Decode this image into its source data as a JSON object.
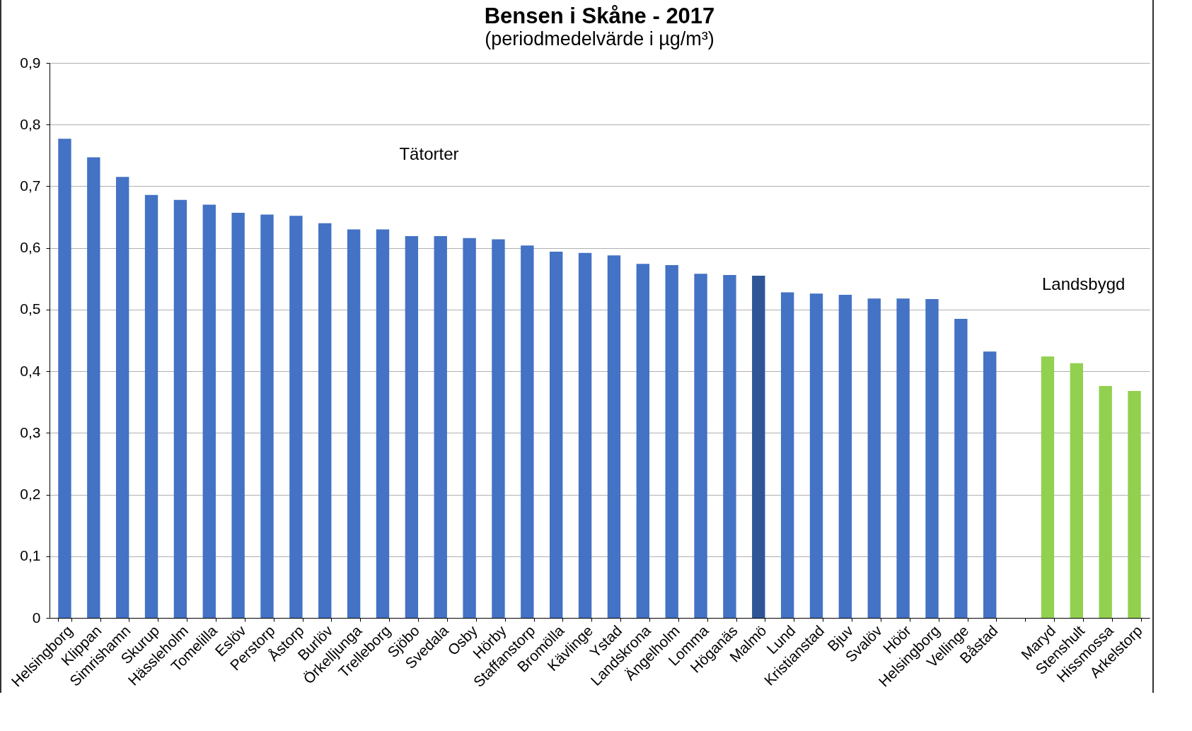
{
  "chart_data": {
    "type": "bar",
    "title": "Bensen i Skåne - 2017",
    "subtitle": "(periodmedelvärde i µg/m³)",
    "categories": [
      "Helsingborg",
      "Klippan",
      "Simrishamn",
      "Skurup",
      "Hässleholm",
      "Tomelilla",
      "Eslöv",
      "Perstorp",
      "Åstorp",
      "Burlöv",
      "Örkelljunga",
      "Trelleborg",
      "Sjöbo",
      "Svedala",
      "Osby",
      "Hörby",
      "Staffanstorp",
      "Bromölla",
      "Kävlinge",
      "Ystad",
      "Landskrona",
      "Ängelholm",
      "Lomma",
      "Höganäs",
      "Malmö",
      "Lund",
      "Kristianstad",
      "Bjuv",
      "Svalöv",
      "Höör",
      "Helsingborg",
      "Vellinge",
      "Båstad",
      null,
      "Maryd",
      "Stenshult",
      "Hissmossa",
      "Arkelstorp"
    ],
    "values": [
      0.777,
      0.747,
      0.715,
      0.686,
      0.678,
      0.67,
      0.657,
      0.654,
      0.652,
      0.64,
      0.63,
      0.63,
      0.619,
      0.619,
      0.616,
      0.614,
      0.604,
      0.594,
      0.592,
      0.588,
      0.574,
      0.572,
      0.558,
      0.556,
      0.555,
      0.528,
      0.526,
      0.524,
      0.518,
      0.518,
      0.517,
      0.485,
      0.432,
      null,
      0.424,
      0.413,
      0.376,
      0.368
    ],
    "colors": [
      "#4472c4",
      "#4472c4",
      "#4472c4",
      "#4472c4",
      "#4472c4",
      "#4472c4",
      "#4472c4",
      "#4472c4",
      "#4472c4",
      "#4472c4",
      "#4472c4",
      "#4472c4",
      "#4472c4",
      "#4472c4",
      "#4472c4",
      "#4472c4",
      "#4472c4",
      "#4472c4",
      "#4472c4",
      "#4472c4",
      "#4472c4",
      "#4472c4",
      "#4472c4",
      "#4472c4",
      "#2f5597",
      "#4472c4",
      "#4472c4",
      "#4472c4",
      "#4472c4",
      "#4472c4",
      "#4472c4",
      "#4472c4",
      "#4472c4",
      "#4472c4",
      "#92d050",
      "#92d050",
      "#92d050",
      "#92d050"
    ],
    "ylim": [
      0,
      0.9
    ],
    "yticks": [
      {
        "value": 0,
        "label": "0"
      },
      {
        "value": 0.1,
        "label": "0,1"
      },
      {
        "value": 0.2,
        "label": "0,2"
      },
      {
        "value": 0.3,
        "label": "0,3"
      },
      {
        "value": 0.4,
        "label": "0,4"
      },
      {
        "value": 0.5,
        "label": "0,5"
      },
      {
        "value": 0.6,
        "label": "0,6"
      },
      {
        "value": 0.7,
        "label": "0,7"
      },
      {
        "value": 0.8,
        "label": "0,8"
      },
      {
        "value": 0.9,
        "label": "0,9"
      }
    ],
    "grid": "y",
    "annotations": [
      "Tätorter",
      "Landsbygd"
    ]
  }
}
